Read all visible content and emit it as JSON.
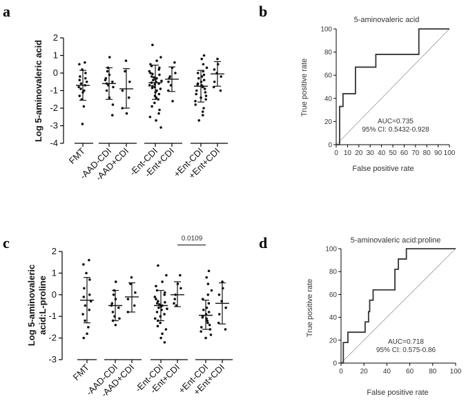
{
  "panels": {
    "a": "a",
    "b": "b",
    "c": "c",
    "d": "d"
  },
  "chart_data": [
    {
      "id": "a",
      "type": "scatter",
      "title": "",
      "ylabel": "Log 5-aminovaleric acid",
      "ylim": [
        -4,
        2
      ],
      "yticks": [
        -4,
        -3,
        -2,
        -1,
        0,
        1,
        2
      ],
      "categories": [
        "FMT",
        "-AAD-CDI",
        "-AAD+CDI",
        "-Ent-CDI",
        "-Ent+CDI",
        "+Ent-CDI",
        "+Ent+CDI"
      ],
      "groups": [
        {
          "name": "FMT",
          "mean": -0.7,
          "sd_low": -1.55,
          "sd_high": 0.15,
          "points": [
            0.6,
            0.5,
            0.2,
            0.0,
            -0.2,
            -0.3,
            -0.4,
            -0.5,
            -0.6,
            -0.7,
            -0.8,
            -0.9,
            -1.0,
            -1.1,
            -1.3,
            -1.5,
            -1.9,
            -2.9
          ]
        },
        {
          "name": "-AAD-CDI",
          "mean": -0.6,
          "sd_low": -1.5,
          "sd_high": 0.3,
          "points": [
            0.9,
            0.3,
            0.1,
            -0.1,
            -0.3,
            -0.4,
            -0.5,
            -0.6,
            -0.7,
            -0.8,
            -1.0,
            -1.4,
            -1.8,
            -2.4
          ]
        },
        {
          "name": "-AAD+CDI",
          "mean": -0.9,
          "sd_low": -2.0,
          "sd_high": 0.25,
          "points": [
            0.7,
            0.1,
            -0.5,
            -1.0,
            -1.4,
            -2.0,
            -2.3
          ]
        },
        {
          "name": "-Ent-CDI",
          "mean": -0.55,
          "sd_low": -1.5,
          "sd_high": 0.45,
          "points": [
            1.6,
            0.9,
            0.7,
            0.5,
            0.4,
            0.3,
            0.2,
            0.1,
            0.0,
            -0.05,
            -0.1,
            -0.2,
            -0.25,
            -0.3,
            -0.35,
            -0.4,
            -0.45,
            -0.5,
            -0.55,
            -0.6,
            -0.65,
            -0.7,
            -0.75,
            -0.8,
            -0.85,
            -0.9,
            -1.0,
            -1.1,
            -1.2,
            -1.3,
            -1.4,
            -1.5,
            -1.7,
            -1.9,
            -2.1,
            -2.3,
            -2.5,
            -2.7,
            -3.1
          ]
        },
        {
          "name": "-Ent+CDI",
          "mean": -0.35,
          "sd_low": -1.05,
          "sd_high": 0.35,
          "points": [
            0.6,
            0.3,
            0.0,
            -0.2,
            -0.3,
            -0.5,
            -0.7,
            -1.0,
            -1.6
          ]
        },
        {
          "name": "+Ent-CDI",
          "mean": -0.75,
          "sd_low": -1.65,
          "sd_high": 0.15,
          "points": [
            1.0,
            0.8,
            0.5,
            0.3,
            0.1,
            0.0,
            -0.1,
            -0.2,
            -0.3,
            -0.4,
            -0.5,
            -0.6,
            -0.65,
            -0.7,
            -0.75,
            -0.8,
            -0.9,
            -1.0,
            -1.1,
            -1.2,
            -1.3,
            -1.4,
            -1.5,
            -1.6,
            -1.8,
            -2.0,
            -2.2,
            -2.4,
            -2.7
          ]
        },
        {
          "name": "+Ent+CDI",
          "mean": -0.05,
          "sd_low": -0.75,
          "sd_high": 0.65,
          "points": [
            0.8,
            0.5,
            0.2,
            0.0,
            -0.2,
            -0.5,
            -0.8,
            -1.0
          ]
        }
      ]
    },
    {
      "id": "b",
      "type": "line",
      "title": "5-aminovaleric acid",
      "xlabel": "False positive rate",
      "ylabel": "True positive rate",
      "xlim": [
        0,
        100
      ],
      "ylim": [
        0,
        100
      ],
      "xticks": [
        0,
        10,
        20,
        30,
        40,
        50,
        60,
        70,
        80,
        90,
        100
      ],
      "yticks": [
        0,
        20,
        40,
        60,
        80,
        100
      ],
      "series": [
        {
          "name": "ROC",
          "x": [
            0,
            3,
            3,
            6,
            6,
            17,
            17,
            35,
            35,
            73,
            73,
            100
          ],
          "y": [
            0,
            0,
            33,
            33,
            44,
            44,
            67,
            67,
            78,
            78,
            100,
            100
          ]
        }
      ],
      "annotations": [
        "AUC=0.735",
        "95% CI: 0.5432-0.928"
      ]
    },
    {
      "id": "c",
      "type": "scatter",
      "title": "",
      "ylabel_lines": [
        "Log 5-aminovaleric",
        "acid:L-proline"
      ],
      "ylim": [
        -3,
        2
      ],
      "yticks": [
        -3,
        -2,
        -1,
        0,
        1,
        2
      ],
      "categories": [
        "FMT",
        "-AAD-CDI",
        "-AAD+CDI",
        "-Ent-CDI",
        "-Ent+CDI",
        "+Ent-CDI",
        "+Ent+CDI"
      ],
      "significance": {
        "label": "0.0109",
        "from": "-Ent+CDI",
        "to": "+Ent-CDI",
        "y": 2.3
      },
      "groups": [
        {
          "name": "FMT",
          "mean": -0.25,
          "sd_low": -1.3,
          "sd_high": 0.8,
          "points": [
            1.6,
            1.4,
            1.0,
            0.7,
            0.3,
            0.0,
            -0.1,
            -0.3,
            -0.5,
            -0.7,
            -0.9,
            -1.2,
            -1.5,
            -1.8,
            -2.0
          ]
        },
        {
          "name": "-AAD-CDI",
          "mean": -0.5,
          "sd_low": -1.2,
          "sd_high": 0.2,
          "points": [
            0.6,
            0.2,
            0.0,
            -0.2,
            -0.4,
            -0.5,
            -0.6,
            -0.8,
            -1.0,
            -1.1,
            -1.2,
            -1.4
          ]
        },
        {
          "name": "-AAD+CDI",
          "mean": -0.1,
          "sd_low": -0.8,
          "sd_high": 0.55,
          "points": [
            0.8,
            0.5,
            0.1,
            -0.2,
            -0.5,
            -0.8
          ]
        },
        {
          "name": "-Ent-CDI",
          "mean": -0.5,
          "sd_low": -1.2,
          "sd_high": 0.2,
          "points": [
            1.35,
            0.9,
            0.6,
            0.4,
            0.2,
            0.1,
            0.0,
            -0.1,
            -0.2,
            -0.3,
            -0.35,
            -0.4,
            -0.45,
            -0.5,
            -0.55,
            -0.6,
            -0.65,
            -0.7,
            -0.8,
            -0.9,
            -1.0,
            -1.1,
            -1.2,
            -1.3,
            -1.45,
            -1.6,
            -1.8,
            -2.0,
            -2.2
          ]
        },
        {
          "name": "-Ent+CDI",
          "mean": 0.0,
          "sd_low": -0.55,
          "sd_high": 0.6,
          "points": [
            0.9,
            0.5,
            0.3,
            0.0,
            -0.2,
            -0.4,
            -0.5
          ]
        },
        {
          "name": "+Ent-CDI",
          "mean": -0.95,
          "sd_low": -1.6,
          "sd_high": -0.25,
          "points": [
            1.1,
            0.8,
            0.5,
            0.2,
            0.0,
            -0.2,
            -0.4,
            -0.6,
            -0.7,
            -0.8,
            -0.9,
            -1.0,
            -1.05,
            -1.1,
            -1.2,
            -1.3,
            -1.4,
            -1.5,
            -1.6,
            -1.7,
            -1.85,
            -2.0
          ]
        },
        {
          "name": "+Ent+CDI",
          "mean": -0.4,
          "sd_low": -1.35,
          "sd_high": 0.55,
          "points": [
            0.6,
            0.3,
            0.0,
            -0.3,
            -0.6,
            -0.9,
            -1.3,
            -1.6
          ]
        }
      ]
    },
    {
      "id": "d",
      "type": "line",
      "title": "5-aminovaleric acid:proline",
      "xlabel": "False positive rate",
      "ylabel": "True positive rate",
      "xlim": [
        0,
        100
      ],
      "ylim": [
        0,
        100
      ],
      "xticks": [
        0,
        20,
        40,
        60,
        80,
        100
      ],
      "yticks": [
        0,
        20,
        40,
        60,
        80,
        100
      ],
      "series": [
        {
          "name": "ROC",
          "x": [
            0,
            2,
            2,
            6,
            6,
            21,
            21,
            24,
            24,
            25,
            25,
            28,
            28,
            47,
            47,
            50,
            50,
            53,
            53,
            57,
            57,
            100
          ],
          "y": [
            0,
            0,
            18,
            18,
            27,
            27,
            36,
            36,
            45,
            45,
            55,
            55,
            64,
            64,
            82,
            82,
            91,
            91,
            91,
            91,
            100,
            100
          ]
        }
      ],
      "annotations": [
        "AUC=0.718",
        "95% CI: 0.575-0.86"
      ]
    }
  ]
}
